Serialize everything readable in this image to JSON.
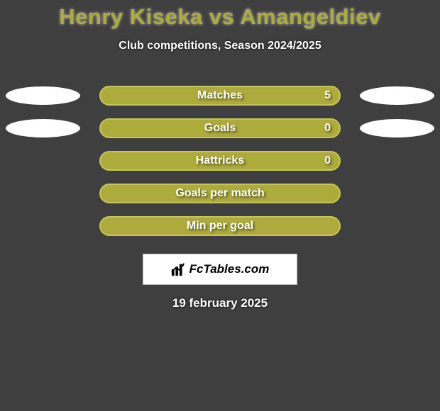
{
  "colors": {
    "background": "#3f3f3f",
    "title": "#adab3c",
    "text": "#ffffff",
    "bar_fill": "#adab3c",
    "bar_border": "#c6c45a",
    "ellipse": "#ffffff",
    "brand_box_bg": "#ffffff",
    "brand_box_border": "#b9b9b9",
    "brand_text": "#000000"
  },
  "title": "Henry Kiseka vs Amangeldiev",
  "subtitle": "Club competitions, Season 2024/2025",
  "rows": [
    {
      "label": "Matches",
      "value": "5",
      "show_value": true,
      "show_left_ellipse": true,
      "show_right_ellipse": true
    },
    {
      "label": "Goals",
      "value": "0",
      "show_value": true,
      "show_left_ellipse": true,
      "show_right_ellipse": true
    },
    {
      "label": "Hattricks",
      "value": "0",
      "show_value": true,
      "show_left_ellipse": false,
      "show_right_ellipse": false
    },
    {
      "label": "Goals per match",
      "value": "",
      "show_value": false,
      "show_left_ellipse": false,
      "show_right_ellipse": false
    },
    {
      "label": "Min per goal",
      "value": "",
      "show_value": false,
      "show_left_ellipse": false,
      "show_right_ellipse": false
    }
  ],
  "brand": "FcTables.com",
  "date": "19 february 2025"
}
